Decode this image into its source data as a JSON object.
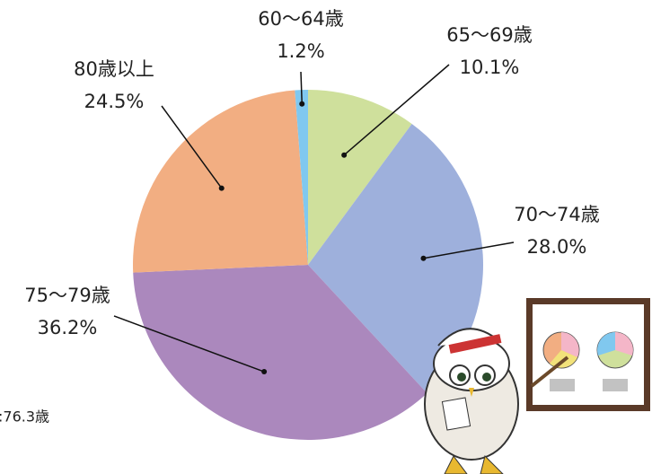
{
  "chart_data": {
    "type": "pie",
    "categories": [
      "65〜69歳",
      "70〜74歳",
      "75〜79歳",
      "80歳以上",
      "60〜64歳"
    ],
    "values": [
      10.1,
      28.0,
      36.2,
      24.5,
      1.2
    ],
    "value_labels": [
      "10.1%",
      "28.0%",
      "36.2%",
      "24.5%",
      "1.2%"
    ],
    "colors": [
      "#cfe09c",
      "#9eb0dc",
      "#ab88bd",
      "#f2ae82",
      "#80c8ef"
    ],
    "note": ":76.3歳"
  }
}
